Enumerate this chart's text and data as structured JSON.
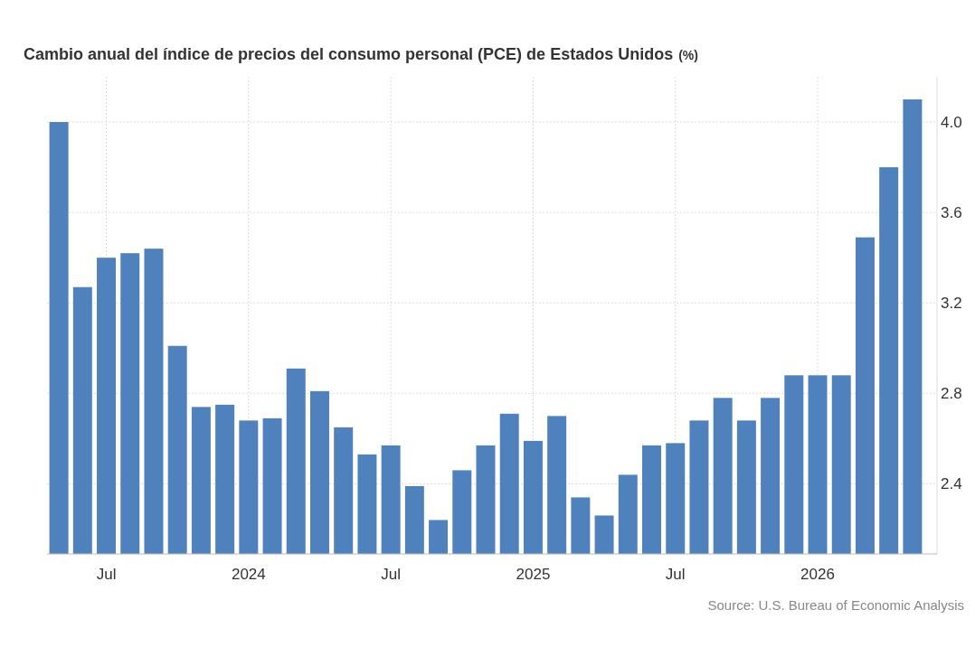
{
  "chart_data": {
    "type": "bar",
    "title": "Cambio anual del índice de precios del consumo personal (PCE) de Estados Unidos",
    "ylabel": "(%)",
    "categories": [
      null,
      null,
      "Jul",
      null,
      null,
      null,
      null,
      null,
      "2024",
      null,
      null,
      null,
      null,
      null,
      "Jul",
      null,
      null,
      null,
      null,
      null,
      "2025",
      null,
      null,
      null,
      null,
      null,
      "Jul",
      null,
      null,
      null,
      null,
      null,
      "2026",
      null,
      null,
      null,
      null
    ],
    "values": [
      4.0,
      3.27,
      3.4,
      3.42,
      3.44,
      3.01,
      2.74,
      2.75,
      2.68,
      2.69,
      2.91,
      2.81,
      2.65,
      2.53,
      2.57,
      2.39,
      2.24,
      2.46,
      2.57,
      2.71,
      2.59,
      2.7,
      2.34,
      2.26,
      2.44,
      2.57,
      2.58,
      2.68,
      2.78,
      2.68,
      2.78,
      2.88,
      2.88,
      2.88,
      3.49,
      3.8,
      4.1
    ],
    "color": "#4f81bd",
    "ylim": [
      2.09,
      4.2
    ],
    "yticks": [
      2.4,
      2.8,
      3.2,
      3.6,
      {
        "value": 4,
        "label": "4.0"
      }
    ],
    "grid": true,
    "annotations": [
      "Source: U.S. Bureau of Economic Analysis"
    ]
  }
}
